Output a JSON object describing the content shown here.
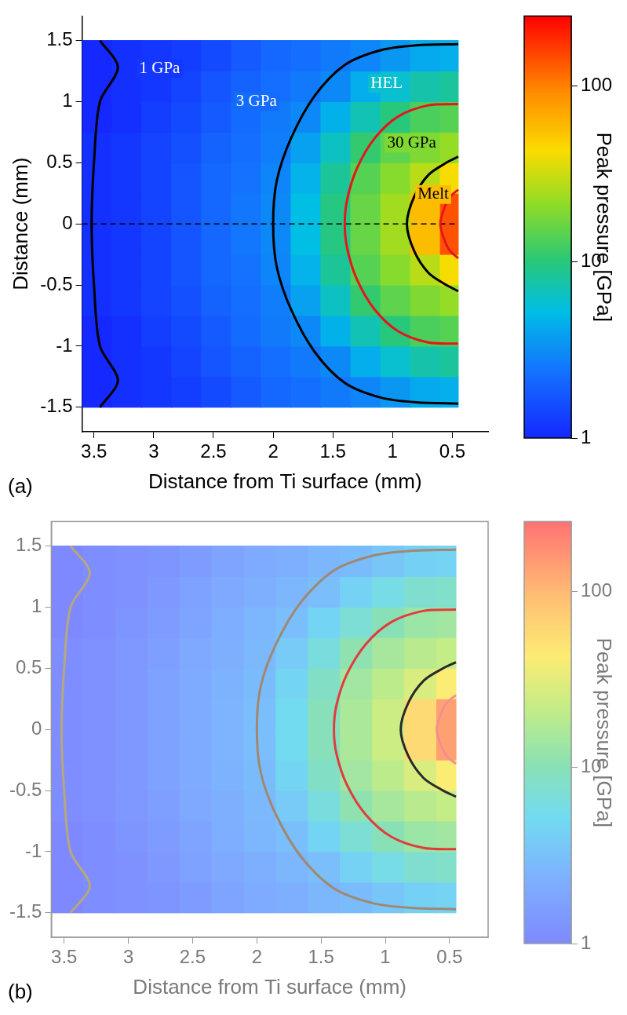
{
  "chart_data": [
    {
      "type": "heatmap",
      "panel_label": "(a)",
      "x_label": "Distance from Ti surface (mm)",
      "y_label": "Distance (mm)",
      "xlim": [
        3.6,
        0.2
      ],
      "xticks": [
        3.5,
        3,
        2.5,
        2,
        1.5,
        1,
        0.5
      ],
      "ylim": [
        -1.7,
        1.7
      ],
      "yticks": [
        -1.5,
        -1,
        -0.5,
        0,
        0.5,
        1,
        1.5
      ],
      "grid": false,
      "cells": {
        "x_edges": [
          3.6,
          3.35,
          3.1,
          2.85,
          2.6,
          2.35,
          2.1,
          1.85,
          1.6,
          1.35,
          1.1,
          0.85,
          0.6,
          0.45
        ],
        "y_edges": [
          -1.5,
          -1.25,
          -1,
          -0.75,
          -0.5,
          -0.25,
          0,
          0.25,
          0.5,
          0.75,
          1,
          1.25,
          1.5
        ],
        "values": [
          [
            1,
            1.1,
            1.2,
            1.3,
            1.5,
            1.8,
            2.1,
            2.3,
            2.6,
            2.9,
            3.5,
            4.2,
            4.5
          ],
          [
            1,
            1.1,
            1.2,
            1.4,
            1.7,
            2,
            2.3,
            2.6,
            3,
            4.4,
            6,
            7.5,
            8.2
          ],
          [
            1,
            1.1,
            1.3,
            1.5,
            1.8,
            2.2,
            2.6,
            3,
            4.6,
            7.1,
            10,
            13,
            14
          ],
          [
            1.1,
            1.2,
            1.4,
            1.6,
            2,
            2.3,
            2.7,
            3.9,
            6.5,
            11,
            15,
            19,
            22
          ],
          [
            1.1,
            1.2,
            1.4,
            1.7,
            2.1,
            2.4,
            2.9,
            4.7,
            8.4,
            14,
            20,
            28,
            42
          ],
          [
            1.1,
            1.2,
            1.4,
            1.7,
            2.1,
            2.5,
            3,
            5.3,
            9.6,
            16,
            24,
            58,
            140
          ],
          [
            1.1,
            1.2,
            1.4,
            1.7,
            2.1,
            2.5,
            3,
            5.3,
            9.6,
            16,
            24,
            58,
            140
          ],
          [
            1.1,
            1.2,
            1.4,
            1.7,
            2.1,
            2.4,
            2.9,
            4.7,
            8.4,
            14,
            20,
            28,
            42
          ],
          [
            1.1,
            1.2,
            1.4,
            1.6,
            2,
            2.3,
            2.7,
            3.9,
            6.5,
            11,
            15,
            19,
            22
          ],
          [
            1,
            1.1,
            1.3,
            1.5,
            1.8,
            2.2,
            2.6,
            3,
            4.6,
            7.1,
            10,
            13,
            14
          ],
          [
            1,
            1.1,
            1.2,
            1.4,
            1.7,
            2,
            2.3,
            2.6,
            3,
            4.4,
            6,
            7.5,
            8.2
          ],
          [
            1,
            1.1,
            1.2,
            1.3,
            1.5,
            1.8,
            2.1,
            2.3,
            2.6,
            2.9,
            3.5,
            4.2,
            4.5
          ]
        ]
      },
      "colorbar": {
        "label": "Peak pressure [GPa]",
        "log": true,
        "range": [
          1,
          250
        ],
        "ticks": [
          1,
          10,
          100
        ]
      },
      "series": [
        {
          "name": "1 GPa",
          "type": "line",
          "line_style": "solid",
          "color": "#000000",
          "x": [
            3.45,
            3.3,
            3.45,
            3.5,
            3.52,
            3.5,
            3.45,
            3.3,
            3.45
          ],
          "y": [
            -1.5,
            -1.28,
            -1,
            -0.5,
            0,
            0.5,
            1,
            1.28,
            1.5
          ]
        },
        {
          "name": "3 GPa",
          "type": "line",
          "line_style": "solid",
          "color": "#000000",
          "x": [
            0.45,
            0.8,
            1.1,
            1.4,
            1.65,
            1.85,
            1.97,
            2,
            1.97,
            1.85,
            1.65,
            1.4,
            1.1,
            0.8,
            0.45
          ],
          "y": [
            -1.47,
            -1.46,
            -1.42,
            -1.3,
            -1.05,
            -0.7,
            -0.35,
            0,
            0.35,
            0.7,
            1.05,
            1.3,
            1.42,
            1.46,
            1.47
          ]
        },
        {
          "name": "HEL",
          "type": "line",
          "line_style": "solid",
          "color": "#e8141c",
          "x": [
            0.45,
            0.7,
            0.95,
            1.15,
            1.3,
            1.38,
            1.4,
            1.38,
            1.3,
            1.15,
            0.95,
            0.7,
            0.45
          ],
          "y": [
            -0.98,
            -0.97,
            -0.88,
            -0.7,
            -0.45,
            -0.2,
            0,
            0.2,
            0.45,
            0.7,
            0.88,
            0.97,
            0.98
          ]
        },
        {
          "name": "30 GPa",
          "type": "line",
          "line_style": "solid",
          "color": "#000000",
          "x": [
            0.45,
            0.55,
            0.7,
            0.82,
            0.88,
            0.82,
            0.7,
            0.55,
            0.45
          ],
          "y": [
            -0.55,
            -0.5,
            -0.4,
            -0.22,
            0,
            0.22,
            0.4,
            0.5,
            0.55
          ]
        },
        {
          "name": "Melt",
          "type": "line",
          "line_style": "solid",
          "color": "#e8141c",
          "x": [
            0.45,
            0.52,
            0.57,
            0.6,
            0.57,
            0.52,
            0.45
          ],
          "y": [
            -0.28,
            -0.22,
            -0.12,
            0,
            0.12,
            0.22,
            0.28
          ]
        },
        {
          "type": "line",
          "line_style": "dashed",
          "color": "#000000",
          "x": [
            3.6,
            0.45
          ],
          "y": [
            0,
            0
          ]
        }
      ]
    },
    {
      "type": "heatmap",
      "panel_label": "(b)",
      "x_label": "Distance from Ti surface (mm)",
      "xlim": [
        3.6,
        0.2
      ],
      "xticks": [
        3.5,
        3,
        2.5,
        2,
        1.5,
        1,
        0.5
      ],
      "ylim": [
        -1.7,
        1.7
      ],
      "yticks": [
        -1.5,
        -1,
        -0.5,
        0,
        0.5,
        1,
        1.5
      ],
      "grid": false,
      "cells": {
        "x_edges": [
          3.6,
          3.35,
          3.1,
          2.85,
          2.6,
          2.35,
          2.1,
          1.85,
          1.6,
          1.35,
          1.1,
          0.85,
          0.6,
          0.45
        ],
        "y_edges": [
          -1.5,
          -1.25,
          -1,
          -0.75,
          -0.5,
          -0.25,
          0,
          0.25,
          0.5,
          0.75,
          1,
          1.25,
          1.5
        ],
        "values": [
          [
            1,
            1.1,
            1.2,
            1.3,
            1.5,
            1.8,
            2.1,
            2.3,
            2.6,
            2.9,
            3.5,
            4.2,
            4.5
          ],
          [
            1,
            1.1,
            1.2,
            1.4,
            1.7,
            2,
            2.3,
            2.6,
            3,
            4.4,
            6,
            7.5,
            8.2
          ],
          [
            1,
            1.1,
            1.3,
            1.5,
            1.8,
            2.2,
            2.6,
            3,
            4.6,
            7.1,
            10,
            13,
            14
          ],
          [
            1.1,
            1.2,
            1.4,
            1.6,
            2,
            2.3,
            2.7,
            3.9,
            6.5,
            11,
            15,
            19,
            22
          ],
          [
            1.1,
            1.2,
            1.4,
            1.7,
            2.1,
            2.4,
            2.9,
            4.7,
            8.4,
            14,
            20,
            28,
            42
          ],
          [
            1.1,
            1.2,
            1.4,
            1.7,
            2.1,
            2.5,
            3,
            5.3,
            9.6,
            16,
            24,
            58,
            140
          ],
          [
            1.1,
            1.2,
            1.4,
            1.7,
            2.1,
            2.5,
            3,
            5.3,
            9.6,
            16,
            24,
            58,
            140
          ],
          [
            1.1,
            1.2,
            1.4,
            1.7,
            2.1,
            2.4,
            2.9,
            4.7,
            8.4,
            14,
            20,
            28,
            42
          ],
          [
            1.1,
            1.2,
            1.4,
            1.6,
            2,
            2.3,
            2.7,
            3.9,
            6.5,
            11,
            15,
            19,
            22
          ],
          [
            1,
            1.1,
            1.3,
            1.5,
            1.8,
            2.2,
            2.6,
            3,
            4.6,
            7.1,
            10,
            13,
            14
          ],
          [
            1,
            1.1,
            1.2,
            1.4,
            1.7,
            2,
            2.3,
            2.6,
            3,
            4.4,
            6,
            7.5,
            8.2
          ],
          [
            1,
            1.1,
            1.2,
            1.3,
            1.5,
            1.8,
            2.1,
            2.3,
            2.6,
            2.9,
            3.5,
            4.2,
            4.5
          ]
        ]
      },
      "colorbar": {
        "label": "Peak pressure [GPa]",
        "log": true,
        "range": [
          1,
          250
        ],
        "ticks": [
          1,
          10,
          100
        ]
      },
      "series": [
        {
          "type": "line",
          "line_style": "solid",
          "color": "#b8a77a",
          "x": [
            3.45,
            3.3,
            3.45,
            3.5,
            3.52,
            3.5,
            3.45,
            3.3,
            3.45
          ],
          "y": [
            -1.5,
            -1.28,
            -1,
            -0.5,
            0,
            0.5,
            1,
            1.28,
            1.5
          ]
        },
        {
          "type": "line",
          "line_style": "solid",
          "color": "#a08870",
          "x": [
            0.45,
            0.8,
            1.1,
            1.4,
            1.65,
            1.85,
            1.97,
            2,
            1.97,
            1.85,
            1.65,
            1.4,
            1.1,
            0.8,
            0.45
          ],
          "y": [
            -1.47,
            -1.46,
            -1.42,
            -1.3,
            -1.05,
            -0.7,
            -0.35,
            0,
            0.35,
            0.7,
            1.05,
            1.3,
            1.42,
            1.46,
            1.47
          ]
        },
        {
          "type": "line",
          "line_style": "solid",
          "color": "#e03c3c",
          "x": [
            0.45,
            0.7,
            0.95,
            1.15,
            1.3,
            1.38,
            1.4,
            1.38,
            1.3,
            1.15,
            0.95,
            0.7,
            0.45
          ],
          "y": [
            -0.98,
            -0.97,
            -0.88,
            -0.7,
            -0.45,
            -0.2,
            0,
            0.2,
            0.45,
            0.7,
            0.88,
            0.97,
            0.98
          ]
        },
        {
          "type": "line",
          "line_style": "solid",
          "color": "#2a2a2a",
          "x": [
            0.45,
            0.55,
            0.7,
            0.82,
            0.88,
            0.82,
            0.7,
            0.55,
            0.45
          ],
          "y": [
            -0.55,
            -0.5,
            -0.4,
            -0.22,
            0,
            0.22,
            0.4,
            0.5,
            0.55
          ]
        },
        {
          "type": "line",
          "line_style": "solid",
          "color": "#f09090",
          "x": [
            0.45,
            0.52,
            0.57,
            0.6,
            0.57,
            0.52,
            0.45
          ],
          "y": [
            -0.28,
            -0.22,
            -0.12,
            0,
            0.12,
            0.22,
            0.28
          ]
        }
      ]
    }
  ]
}
